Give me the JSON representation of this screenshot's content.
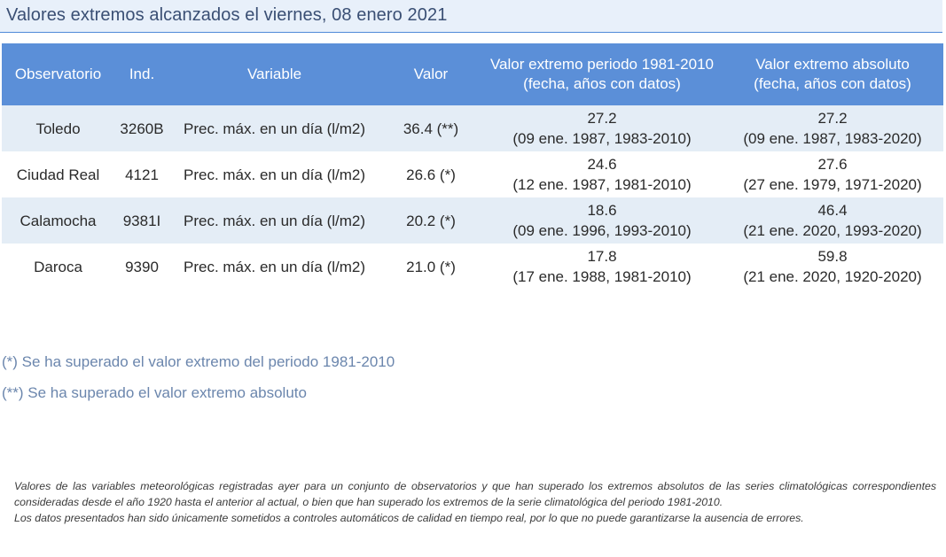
{
  "title": "Valores extremos alcanzados el viernes, 08 enero 2021",
  "table": {
    "headers": {
      "observatorio": "Observatorio",
      "ind": "Ind.",
      "variable": "Variable",
      "valor": "Valor",
      "periodo_line1": "Valor extremo periodo 1981-2010",
      "periodo_line2": "(fecha, años con datos)",
      "absoluto_line1": "Valor extremo absoluto",
      "absoluto_line2": "(fecha, años con datos)"
    },
    "rows": [
      {
        "observatorio": "Toledo",
        "ind": "3260B",
        "variable": "Prec. máx. en un día (l/m2)",
        "valor": "36.4 (**)",
        "periodo_valor": "27.2",
        "periodo_detalle": "(09 ene. 1987, 1983-2010)",
        "absoluto_valor": "27.2",
        "absoluto_detalle": "(09 ene. 1987, 1983-2020)"
      },
      {
        "observatorio": "Ciudad Real",
        "ind": "4121",
        "variable": "Prec. máx. en un día (l/m2)",
        "valor": "26.6 (*)",
        "periodo_valor": "24.6",
        "periodo_detalle": "(12 ene. 1987, 1981-2010)",
        "absoluto_valor": "27.6",
        "absoluto_detalle": "(27 ene. 1979, 1971-2020)"
      },
      {
        "observatorio": "Calamocha",
        "ind": "9381I",
        "variable": "Prec. máx. en un día (l/m2)",
        "valor": "20.2 (*)",
        "periodo_valor": "18.6",
        "periodo_detalle": "(09 ene. 1996, 1993-2010)",
        "absoluto_valor": "46.4",
        "absoluto_detalle": "(21 ene. 2020, 1993-2020)"
      },
      {
        "observatorio": "Daroca",
        "ind": "9390",
        "variable": "Prec. máx. en un día (l/m2)",
        "valor": "21.0 (*)",
        "periodo_valor": "17.8",
        "periodo_detalle": "(17 ene. 1988, 1981-2010)",
        "absoluto_valor": "59.8",
        "absoluto_detalle": "(21 ene. 2020, 1920-2020)"
      }
    ]
  },
  "notes": {
    "single": "(*) Se ha superado el valor extremo del periodo 1981-2010",
    "double": "(**) Se ha superado el valor extremo absoluto"
  },
  "footer": {
    "paragraph1": "Valores de las variables meteorológicas registradas ayer para un conjunto de observatorios y que han superado los extremos absolutos de las series climatológicas correspondientes consideradas desde el año 1920 hasta el anterior al actual, o bien que han superado los extremos de la serie climatológica del periodo 1981-2010.",
    "paragraph2": "Los datos presentados han sido únicamente sometidos a controles automáticos de calidad en tiempo real, por lo que no puede garantizarse la ausencia de errores."
  },
  "colors": {
    "header_bg": "#5b8fd8",
    "row_stripe": "#e4edf6",
    "title_color": "#3a4f74",
    "note_color": "#6b86ad"
  }
}
